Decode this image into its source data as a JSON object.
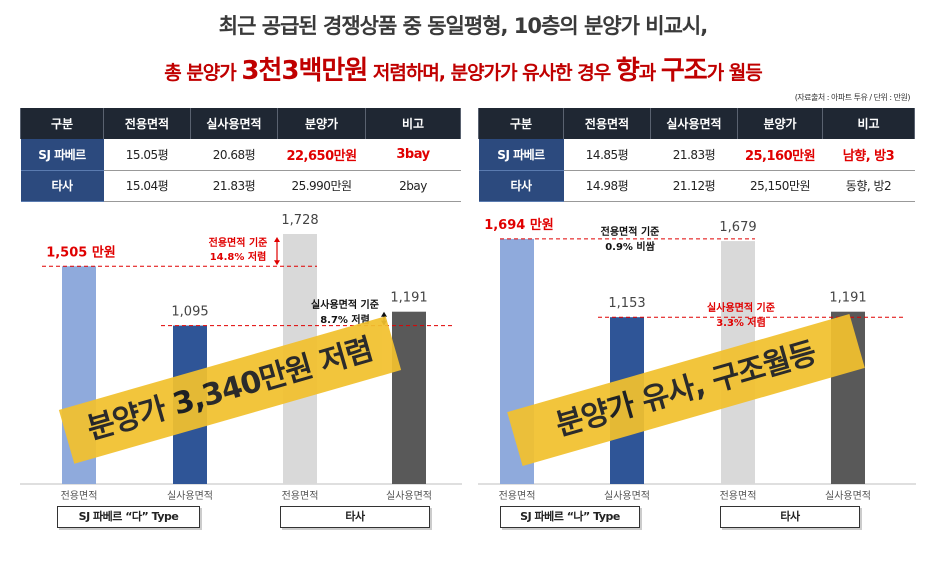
{
  "header": {
    "line1": "최근 공급된 경쟁상품 중 동일평형, 10층의 분양가 비교시,",
    "line2_a": "총 분양가 ",
    "line2_big1": "3천3백만원",
    "line2_b": " 저렴하며, 분양가가 유사한 경우 ",
    "line2_big2": "향",
    "line2_c": "과 ",
    "line2_big3": "구조",
    "line2_d": "가 월등",
    "source": "(자료출처 : 아파트 투유 / 단위 : 만원)"
  },
  "tables": [
    {
      "headers": [
        "구분",
        "전용면적",
        "실사용면적",
        "분양가",
        "비고"
      ],
      "rows": [
        [
          "SJ 파베르",
          "15.05평",
          "20.68평",
          "22,650만원",
          "3bay"
        ],
        [
          "타사",
          "15.04평",
          "21.83평",
          "25.990만원",
          "2bay"
        ]
      ]
    },
    {
      "headers": [
        "구분",
        "전용면적",
        "실사용면적",
        "분양가",
        "비고"
      ],
      "rows": [
        [
          "SJ 파베르",
          "14.85평",
          "21.83평",
          "25,160만원",
          "남향, 방3"
        ],
        [
          "타사",
          "14.98평",
          "21.12평",
          "25,150만원",
          "동향, 방2"
        ]
      ]
    }
  ],
  "colors": {
    "light_blue": "#8faadc",
    "dark_blue": "#2f5597",
    "light_gray": "#d9d9d9",
    "dark_gray": "#595959",
    "red": "#e00000",
    "stamp_yellow": "#f2c12e",
    "header_dark": "#1f2733",
    "row_header_blue": "#2c4a7e"
  },
  "chart_data": [
    {
      "type": "bar",
      "categories": [
        "전용면적",
        "실사용면적",
        "전용면적",
        "실사용면적"
      ],
      "values": [
        1505,
        1095,
        1728,
        1191
      ],
      "value_labels": [
        "1,505 만원",
        "1,095",
        "1,728",
        "1,191"
      ],
      "group_labels": [
        "SJ 파베르 “다” Type",
        "타사"
      ],
      "annotations": [
        {
          "text1": "전용면적 기준",
          "text2": "14.8% 저렴"
        },
        {
          "text1": "실사용면적 기준",
          "text2": "8.7% 저렴"
        }
      ],
      "stamp": "분양가 3,340만원 저렴"
    },
    {
      "type": "bar",
      "categories": [
        "전용면적",
        "실사용면적",
        "전용면적",
        "실사용면적"
      ],
      "values": [
        1694,
        1153,
        1679,
        1191
      ],
      "value_labels": [
        "1,694 만원",
        "1,153",
        "1,679",
        "1,191"
      ],
      "group_labels": [
        "SJ 파베르 “나” Type",
        "타사"
      ],
      "annotations": [
        {
          "text1": "전용면적 기준",
          "text2": "0.9% 비쌈"
        },
        {
          "text1": "실사용면적 기준",
          "text2": "3.3% 저렴"
        }
      ],
      "stamp": "분양가 유사, 구조월등"
    }
  ]
}
